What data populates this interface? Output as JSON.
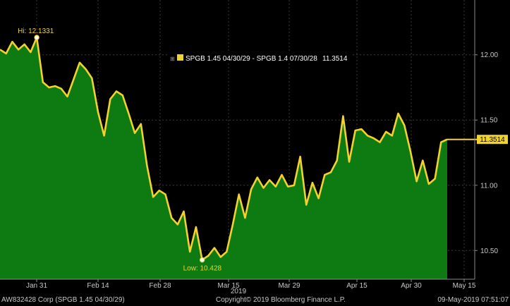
{
  "chart_data": {
    "type": "area",
    "legend": {
      "label": "SPGB 1.45 04/30/29 - SPGB 1.4 07/30/28",
      "value": "11.3514"
    },
    "x_tick_labels": [
      "Jan 31",
      "Feb 14",
      "Feb 28",
      "Mar 15",
      "Mar 29",
      "Apr 15",
      "Apr 30",
      "May 15"
    ],
    "x_year_label": "2019",
    "y_ticks": [
      10.5,
      11.0,
      11.5,
      12.0
    ],
    "y_tick_labels": [
      "10.50",
      "11.00",
      "11.50",
      "12.00"
    ],
    "ylim": [
      10.28,
      12.42
    ],
    "last_value_label": "11.3514",
    "high_label": "Hi: 12.1331",
    "high_value": 12.1331,
    "low_label": "Low: 10.428",
    "low_value": 10.428,
    "colors": {
      "line": "#f2d22e",
      "fill": "#0d7a12",
      "background": "#000000",
      "axis_text": "#c8c8c8",
      "high_low_text": "#f2d22e"
    },
    "series": [
      {
        "values": [
          12.04,
          12.01,
          12.1,
          12.04,
          12.08,
          12.02,
          12.1331,
          11.79,
          11.75,
          11.76,
          11.74,
          11.68,
          11.81,
          11.94,
          11.89,
          11.82,
          11.56,
          11.38,
          11.66,
          11.72,
          11.69,
          11.55,
          11.4,
          11.47,
          11.15,
          10.91,
          10.96,
          10.93,
          10.75,
          10.7,
          10.8,
          10.49,
          10.68,
          10.428,
          10.46,
          10.52,
          10.45,
          10.49,
          10.7,
          10.93,
          10.75,
          10.97,
          11.06,
          10.98,
          11.04,
          10.99,
          11.08,
          10.99,
          11.0,
          11.22,
          10.85,
          11.02,
          10.9,
          11.08,
          11.1,
          11.19,
          11.53,
          11.18,
          11.42,
          11.43,
          11.38,
          11.36,
          11.33,
          11.41,
          11.38,
          11.55,
          11.46,
          11.26,
          11.03,
          11.19,
          11.01,
          11.05,
          11.33,
          11.3514
        ]
      }
    ]
  },
  "footer": {
    "left": "AW832428 Corp (SPGB 1.45 04/30/29)",
    "center": "Copyright© 2019 Bloomberg Finance L.P.",
    "right": "09-May-2019 07:51:07"
  }
}
